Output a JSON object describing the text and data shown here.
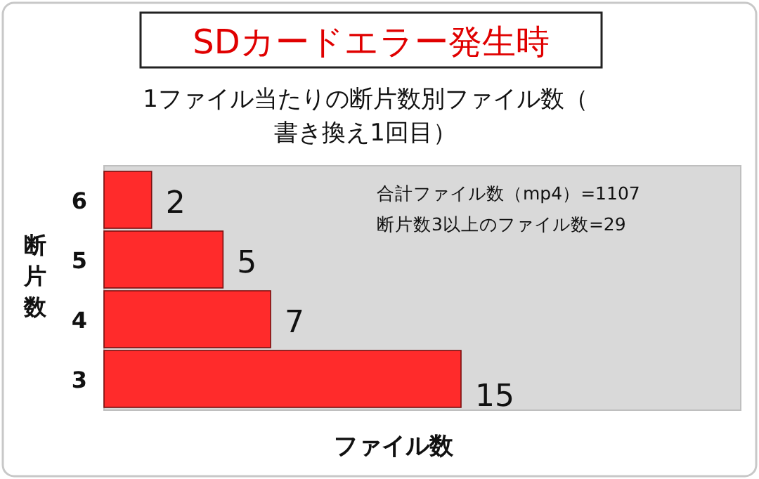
{
  "chart_data": {
    "type": "bar",
    "orientation": "horizontal",
    "title": "SDカードエラー発生時",
    "subtitle": "1ファイル当たりの断片数別ファイル数（書き換え1回目）",
    "xlabel": "ファイル数",
    "ylabel": "断片数",
    "categories": [
      "6",
      "5",
      "4",
      "3"
    ],
    "values": [
      2,
      5,
      7,
      15
    ],
    "color": "#ff2b2b",
    "data_labels": true,
    "annotations": [
      "合計ファイル数（mp4）=1107",
      "断片数3以上のファイル数=29"
    ]
  }
}
